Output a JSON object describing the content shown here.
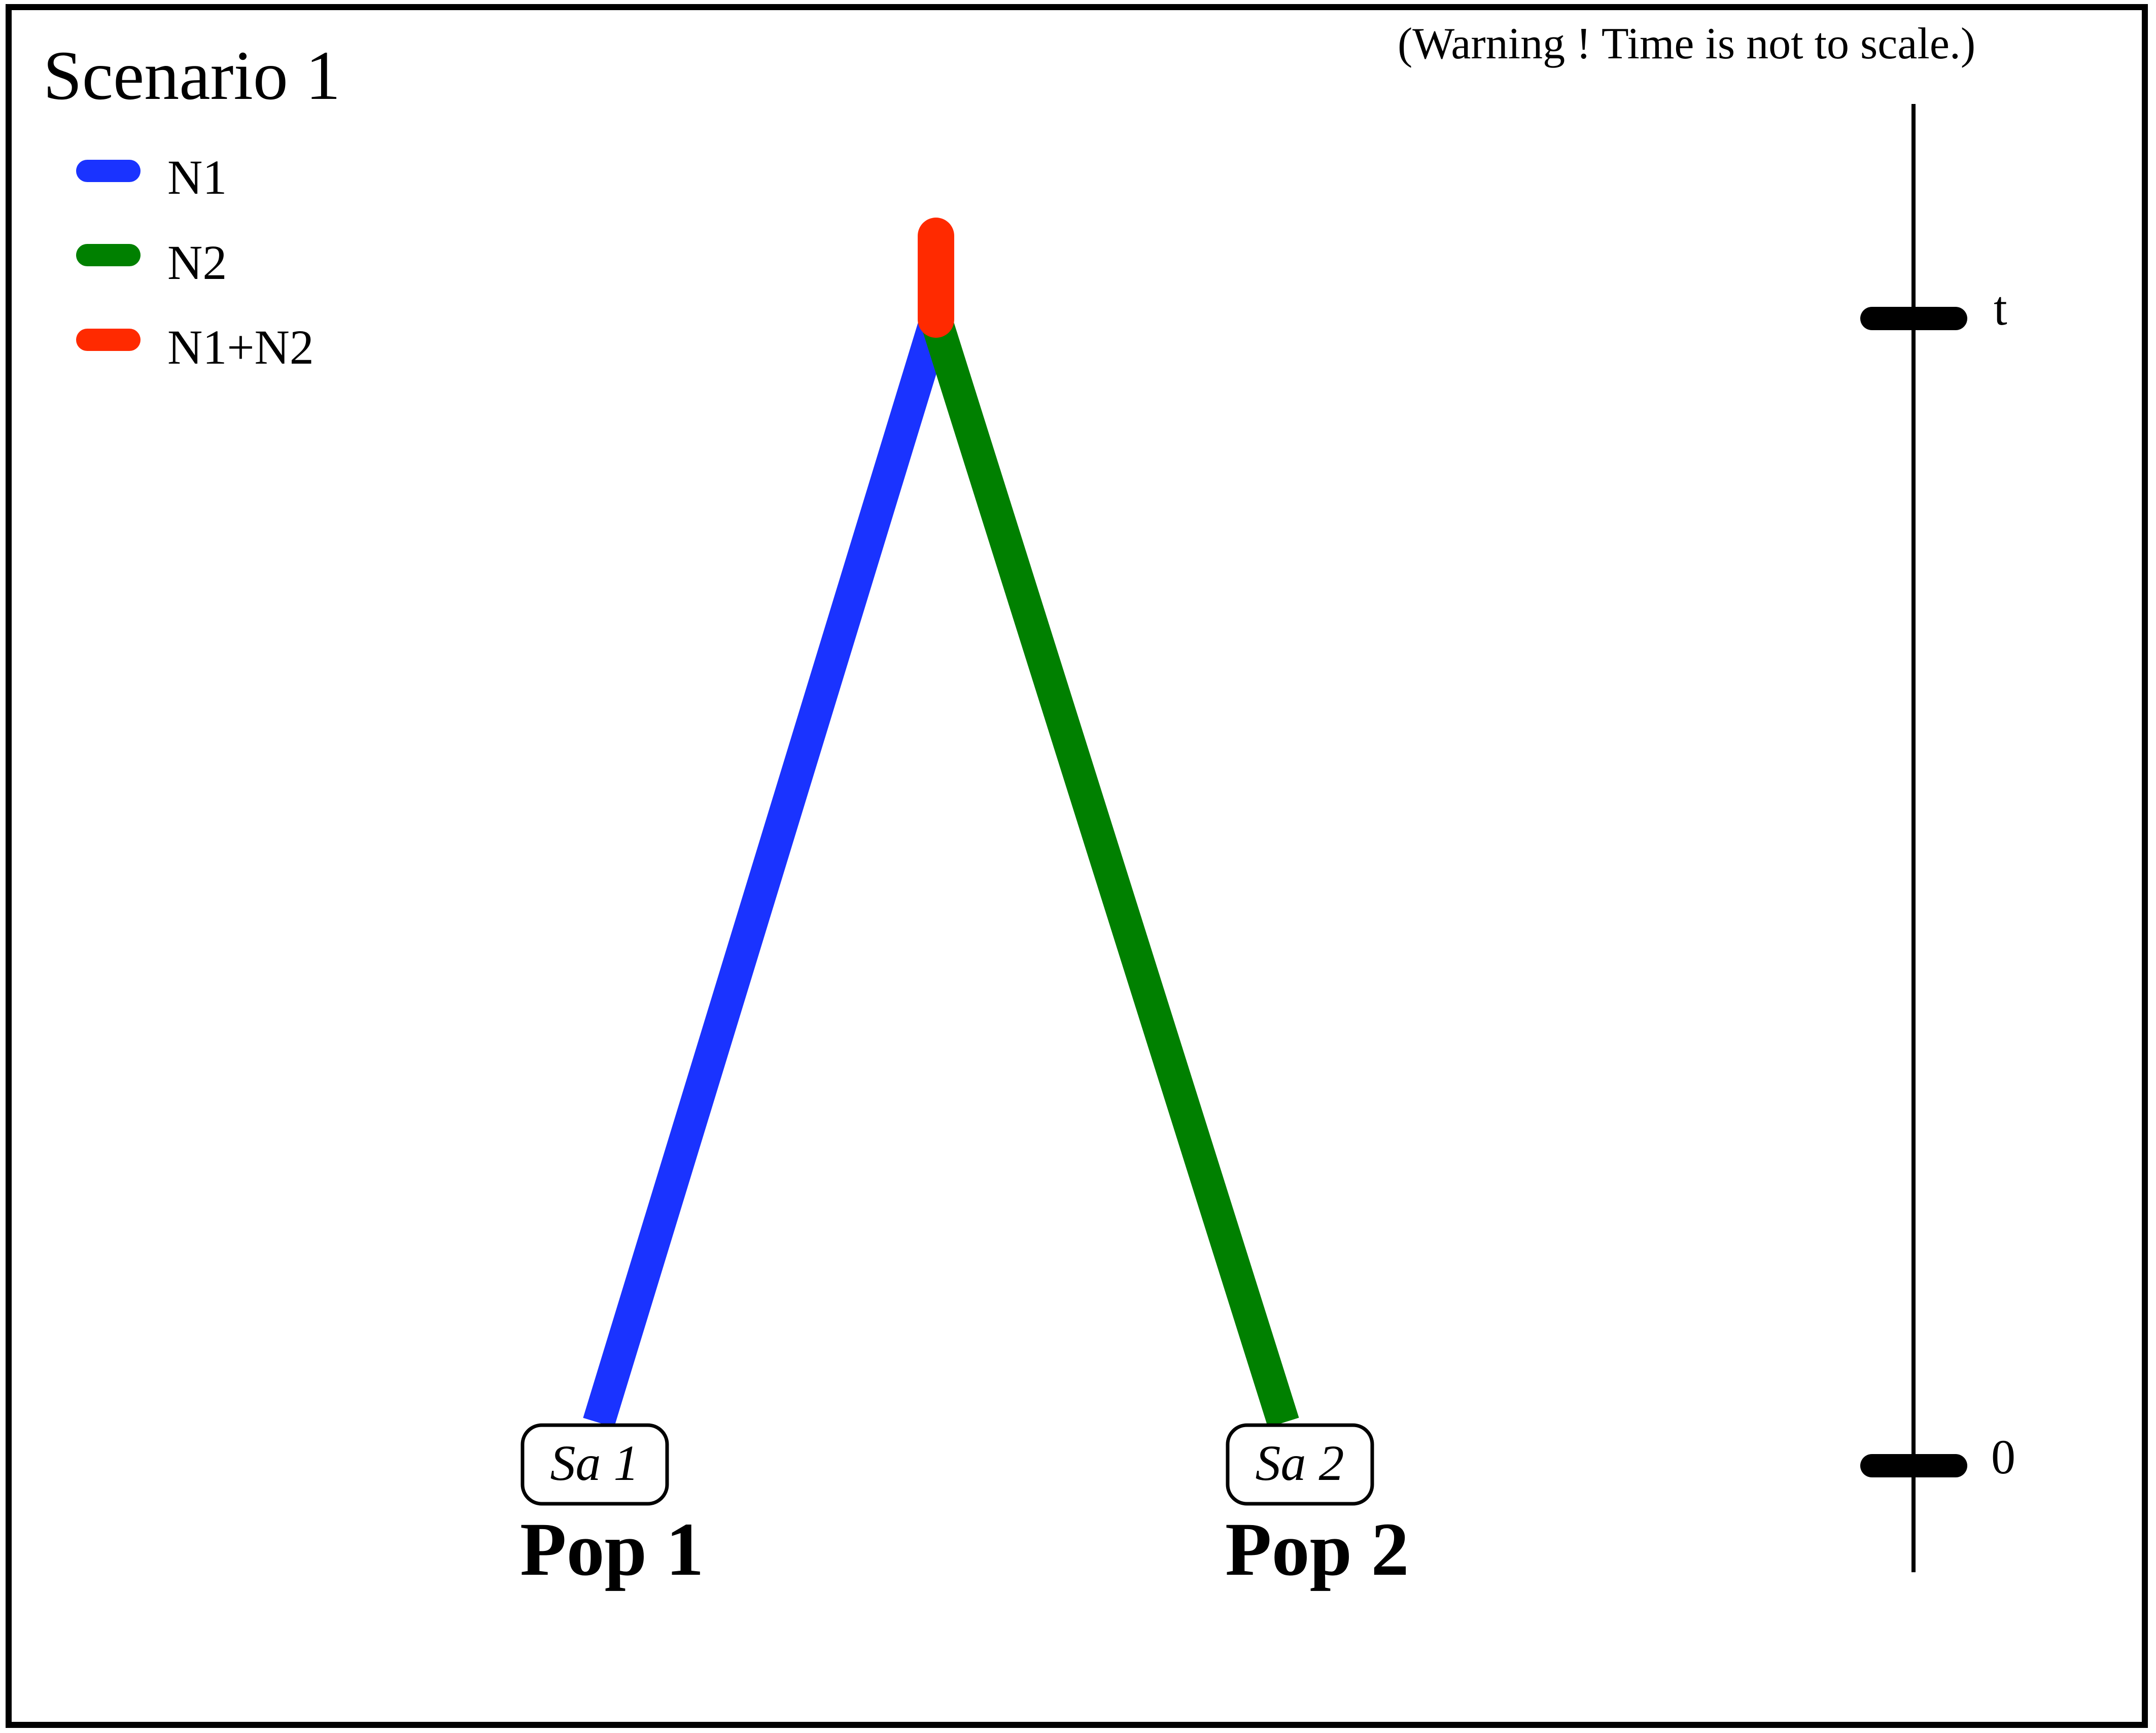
{
  "title": "Scenario 1",
  "warning": "(Warning ! Time is not to scale.)",
  "legend": [
    {
      "label": "N1",
      "color": "#1a33ff"
    },
    {
      "label": "N2",
      "color": "#008000"
    },
    {
      "label": "N1+N2",
      "color": "#ff2a00"
    }
  ],
  "branches": [
    {
      "name": "N1",
      "color": "#1a33ff"
    },
    {
      "name": "N2",
      "color": "#008000"
    },
    {
      "name": "N1+N2",
      "color": "#ff2a00"
    }
  ],
  "samples": [
    {
      "label": "Sa 1",
      "population": "Pop 1"
    },
    {
      "label": "Sa 2",
      "population": "Pop 2"
    }
  ],
  "time_axis": {
    "ticks": [
      {
        "label": "t"
      },
      {
        "label": "0"
      }
    ]
  }
}
